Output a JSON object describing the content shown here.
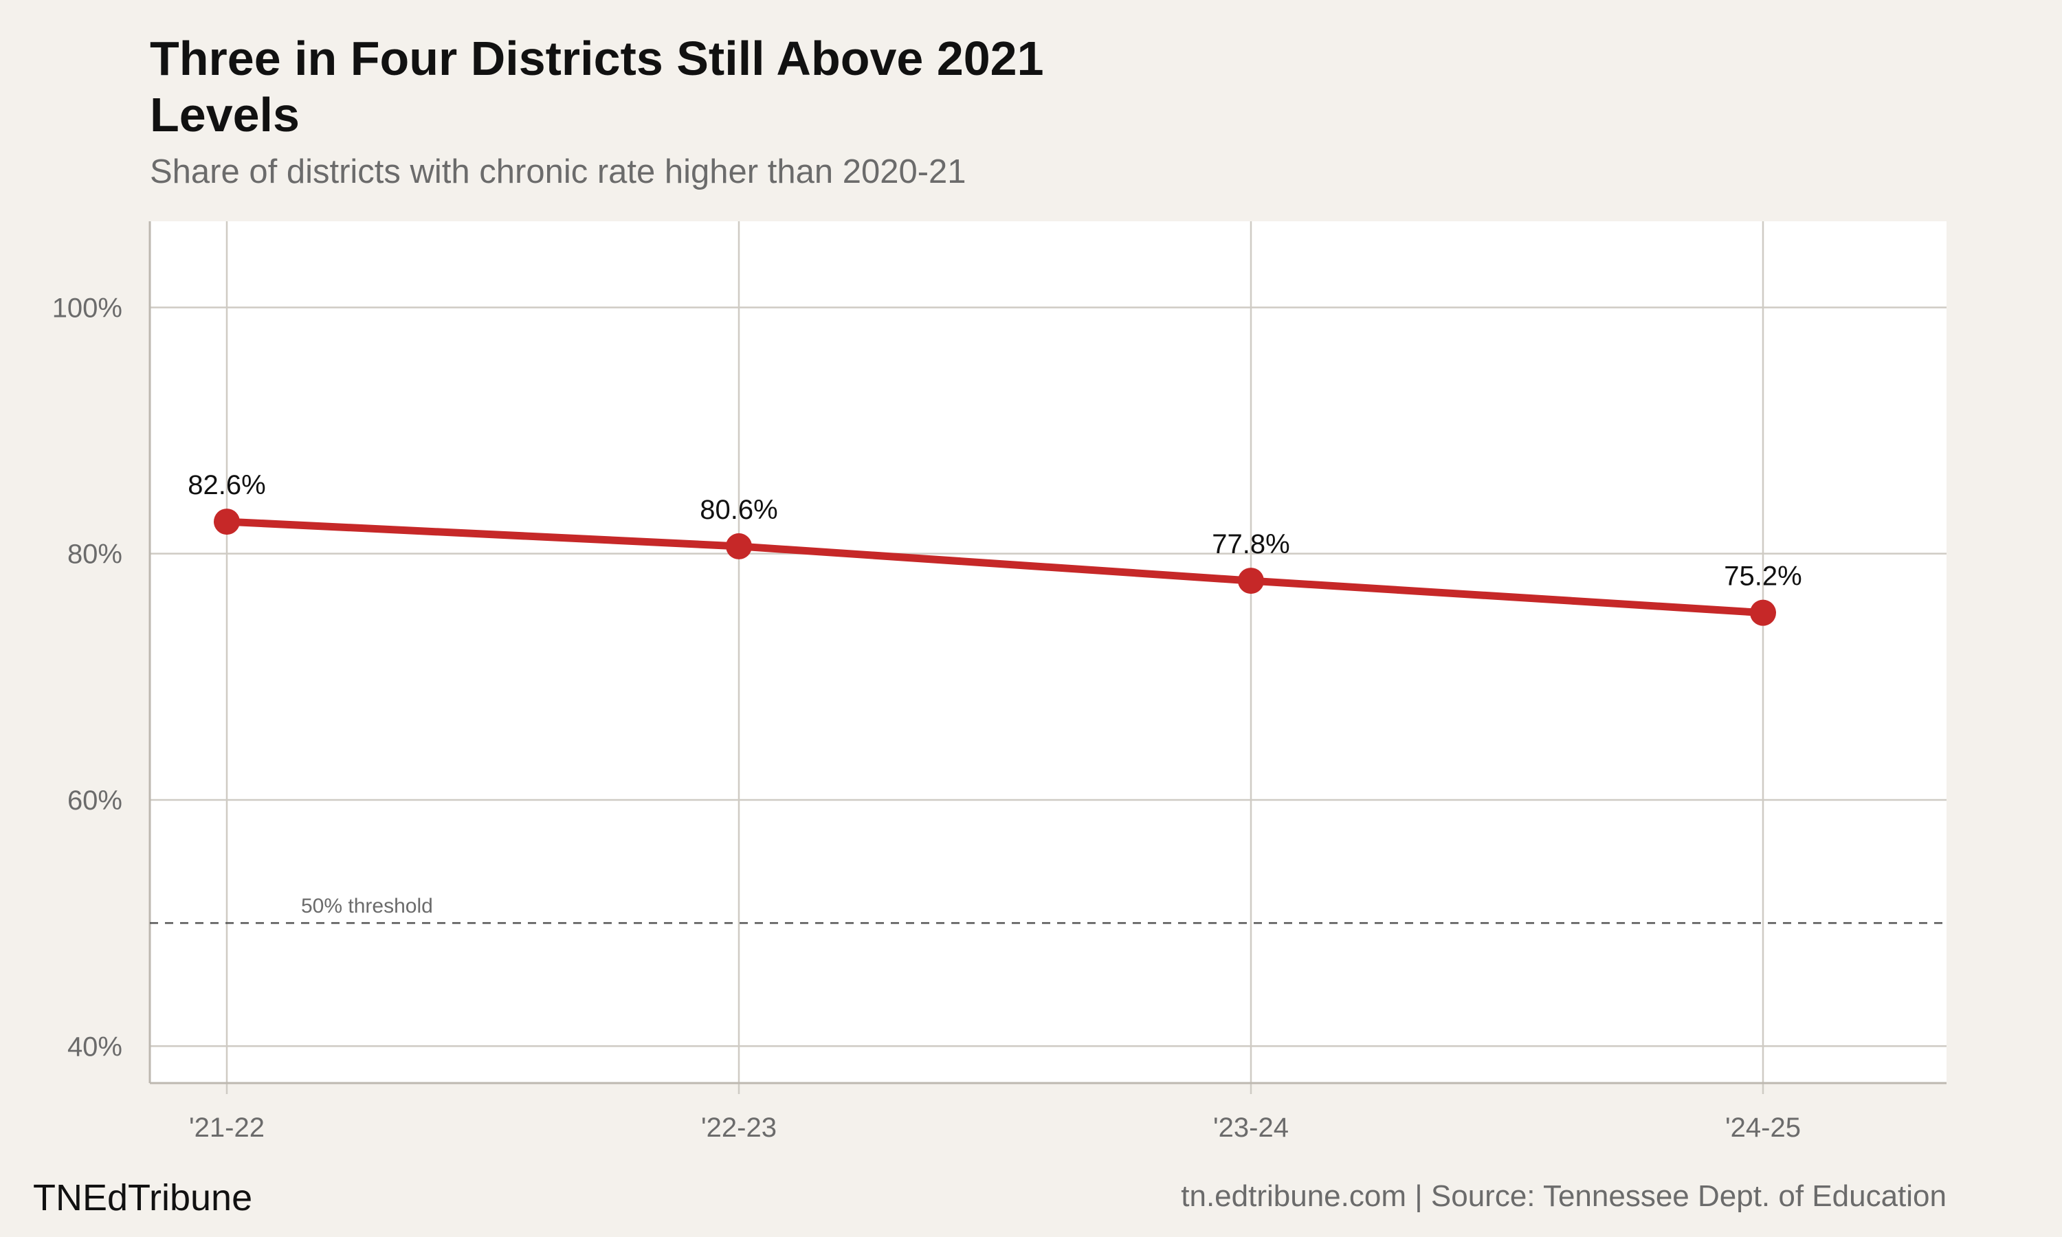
{
  "header": {
    "brand": "TNEdTribune",
    "source": "tn.edtribune.com | Source: Tennessee Dept. of Education"
  },
  "chart_data": {
    "type": "line",
    "title": "Three in Four Districts Still Above 2021 Levels",
    "subtitle": "Share of districts with chronic rate higher than 2020-21",
    "categories": [
      "'21-22",
      "'22-23",
      "'23-24",
      "'24-25"
    ],
    "series": [
      {
        "values": [
          82.6,
          80.6,
          77.8,
          75.2
        ],
        "labels": [
          "82.6%",
          "80.6%",
          "77.8%",
          "75.2%"
        ],
        "color": "#c62828"
      }
    ],
    "ylim": [
      37,
      107
    ],
    "yticks": [
      40,
      60,
      80,
      100
    ],
    "ytick_labels": [
      "40%",
      "60%",
      "80%",
      "100%"
    ],
    "grid": true,
    "reference_line": {
      "value": 50,
      "label": "50% threshold",
      "style": "dashed",
      "color": "#555555"
    },
    "colors": {
      "background": "#f4f1ec",
      "panel": "#ffffff",
      "grid": "#cfcbc4"
    }
  }
}
